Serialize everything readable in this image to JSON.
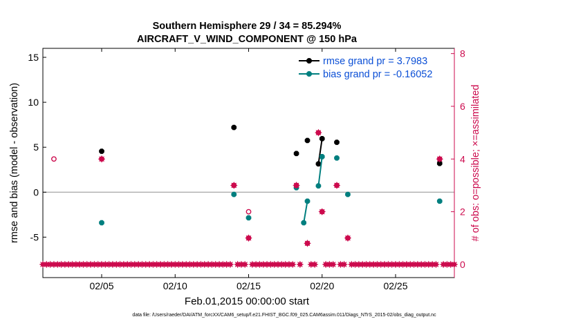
{
  "chart_data": {
    "type": "scatter",
    "title": "Southern Hemisphere 29 / 34 = 85.294%",
    "subtitle": "AIRCRAFT_V_WIND_COMPONENT @ 150 hPa",
    "xlabel": "Feb.01,2015 00:00:00 start",
    "ylabel": "rmse and bias (model - observation)",
    "y2label": "# of obs: o=possible; ×=assimilated",
    "footnote": "data file: /Users/raeder/DAI/ATM_forcXX/CAM6_setup/f.e21.FHIST_BGC.f09_025.CAM6assim.011/Diags_NTrS_2015-02/obs_diag_output.nc",
    "xlim": [
      1,
      29
    ],
    "ylim": [
      -9.5,
      16
    ],
    "y2lim": [
      -0.5,
      8.2
    ],
    "x_ticks": [
      5,
      10,
      15,
      20,
      25
    ],
    "x_tick_labels": [
      "02/05",
      "02/10",
      "02/15",
      "02/20",
      "02/25"
    ],
    "y_ticks": [
      -5,
      0,
      5,
      10,
      15
    ],
    "y_tick_labels": [
      "-5",
      "0",
      "5",
      "10",
      "15"
    ],
    "y2_ticks": [
      0,
      2,
      4,
      6,
      8
    ],
    "y2_tick_labels": [
      "0",
      "2",
      "4",
      "6",
      "8"
    ],
    "zero_line": 0,
    "legend": {
      "placement": "top-right"
    },
    "colors": {
      "rmse": "#000000",
      "bias": "#007f7f",
      "count": "#cc0a4d",
      "legend_text": "#0b4fd6",
      "zero": "#b0b0b0"
    },
    "series": [
      {
        "name": "rmse grand pr = 3.7983",
        "key": "rmse",
        "points": [
          [
            5,
            4.55
          ],
          [
            14,
            7.2
          ],
          [
            18.25,
            4.3
          ],
          [
            19,
            5.75
          ],
          [
            19.75,
            3.15
          ],
          [
            20,
            5.95
          ],
          [
            21,
            5.55
          ],
          [
            28,
            3.2
          ]
        ],
        "lines": [
          [
            [
              19.75,
              3.15
            ],
            [
              20,
              5.95
            ]
          ]
        ]
      },
      {
        "name": "bias grand pr = -0.16052",
        "key": "bias",
        "points": [
          [
            5,
            -3.4
          ],
          [
            14,
            -0.25
          ],
          [
            15,
            -2.85
          ],
          [
            18.25,
            0.5
          ],
          [
            18.75,
            -3.4
          ],
          [
            19,
            -1.0
          ],
          [
            19.75,
            0.7
          ],
          [
            20,
            3.95
          ],
          [
            21,
            3.8
          ],
          [
            21.75,
            -0.25
          ],
          [
            28,
            -1.0
          ]
        ],
        "lines": [
          [
            [
              18.75,
              -3.4
            ],
            [
              19,
              -1.0
            ]
          ],
          [
            [
              19.75,
              0.7
            ],
            [
              20,
              3.95
            ]
          ]
        ]
      },
      {
        "key": "possible",
        "points": [
          [
            1.75,
            4
          ],
          [
            5,
            4
          ],
          [
            14,
            3
          ],
          [
            15,
            2
          ],
          [
            15,
            1
          ],
          [
            18.25,
            3
          ],
          [
            19,
            0.8
          ],
          [
            19.75,
            5
          ],
          [
            20,
            2
          ],
          [
            21,
            3
          ],
          [
            21.75,
            1
          ],
          [
            28,
            4
          ]
        ]
      },
      {
        "key": "assimilated",
        "points": [
          [
            5,
            4
          ],
          [
            14,
            3
          ],
          [
            15,
            1
          ],
          [
            18.25,
            3
          ],
          [
            19,
            0.8
          ],
          [
            19.75,
            5
          ],
          [
            20,
            2
          ],
          [
            21,
            3
          ],
          [
            21.75,
            1
          ],
          [
            28,
            4
          ]
        ]
      }
    ],
    "zero_count_x": [
      1.0,
      1.25,
      1.5,
      1.75,
      2.0,
      2.25,
      2.5,
      2.75,
      3.0,
      3.25,
      3.5,
      3.75,
      4.0,
      4.25,
      4.5,
      4.75,
      5.0,
      5.25,
      5.5,
      5.75,
      6.0,
      6.25,
      6.5,
      6.75,
      7.0,
      7.25,
      7.5,
      7.75,
      8.0,
      8.25,
      8.5,
      8.75,
      9.0,
      9.25,
      9.5,
      9.75,
      10.0,
      10.25,
      10.5,
      10.75,
      11.0,
      11.25,
      11.5,
      11.75,
      12.0,
      12.25,
      12.5,
      12.75,
      13.0,
      13.25,
      13.5,
      13.75,
      14.25,
      14.5,
      14.75,
      15.25,
      15.5,
      15.75,
      16.0,
      16.25,
      16.5,
      16.75,
      17.0,
      17.25,
      17.5,
      17.75,
      18.0,
      18.5,
      19.25,
      19.5,
      20.25,
      20.5,
      20.75,
      21.25,
      21.5,
      22.0,
      22.25,
      22.5,
      22.75,
      23.0,
      23.25,
      23.5,
      23.75,
      24.0,
      24.25,
      24.5,
      24.75,
      25.0,
      25.25,
      25.5,
      25.75,
      26.0,
      26.25,
      26.5,
      26.75,
      27.0,
      27.25,
      27.5,
      27.75,
      28.25,
      28.5,
      28.75,
      29.0
    ]
  }
}
